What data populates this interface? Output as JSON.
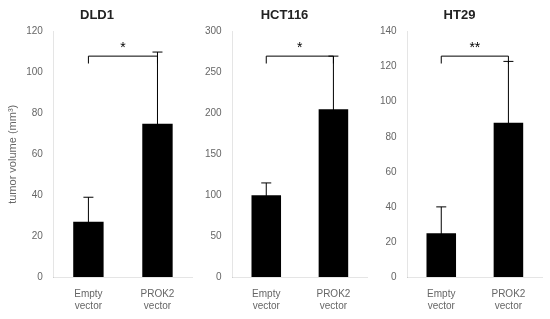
{
  "chart_data": [
    {
      "type": "bar",
      "title": "DLD1",
      "ylabel": "tumor volume (mm³)",
      "categories": [
        "Empty vector",
        "PROK2 vector"
      ],
      "values": [
        27,
        75
      ],
      "errors": [
        12,
        35
      ],
      "color": "black",
      "ylim": [
        0,
        120
      ],
      "yticks": [
        0,
        20,
        40,
        60,
        80,
        100,
        120
      ],
      "grid": false,
      "annotations": [
        {
          "text": "*"
        }
      ]
    },
    {
      "type": "bar",
      "title": "HCT116",
      "categories": [
        "Empty vector",
        "PROK2 vector"
      ],
      "values": [
        100,
        205
      ],
      "errors": [
        15,
        65
      ],
      "color": "black",
      "ylim": [
        0,
        300
      ],
      "yticks": [
        0,
        50,
        100,
        150,
        200,
        250,
        300
      ],
      "grid": false,
      "annotations": [
        {
          "text": "*"
        }
      ]
    },
    {
      "type": "bar",
      "title": "HT29",
      "categories": [
        "Empty vector",
        "PROK2 vector"
      ],
      "values": [
        25,
        88
      ],
      "errors": [
        15,
        35
      ],
      "color": "black",
      "ylim": [
        0,
        140
      ],
      "yticks": [
        0,
        20,
        40,
        60,
        80,
        100,
        120,
        140
      ],
      "grid": false,
      "annotations": [
        {
          "text": "**"
        }
      ]
    }
  ]
}
